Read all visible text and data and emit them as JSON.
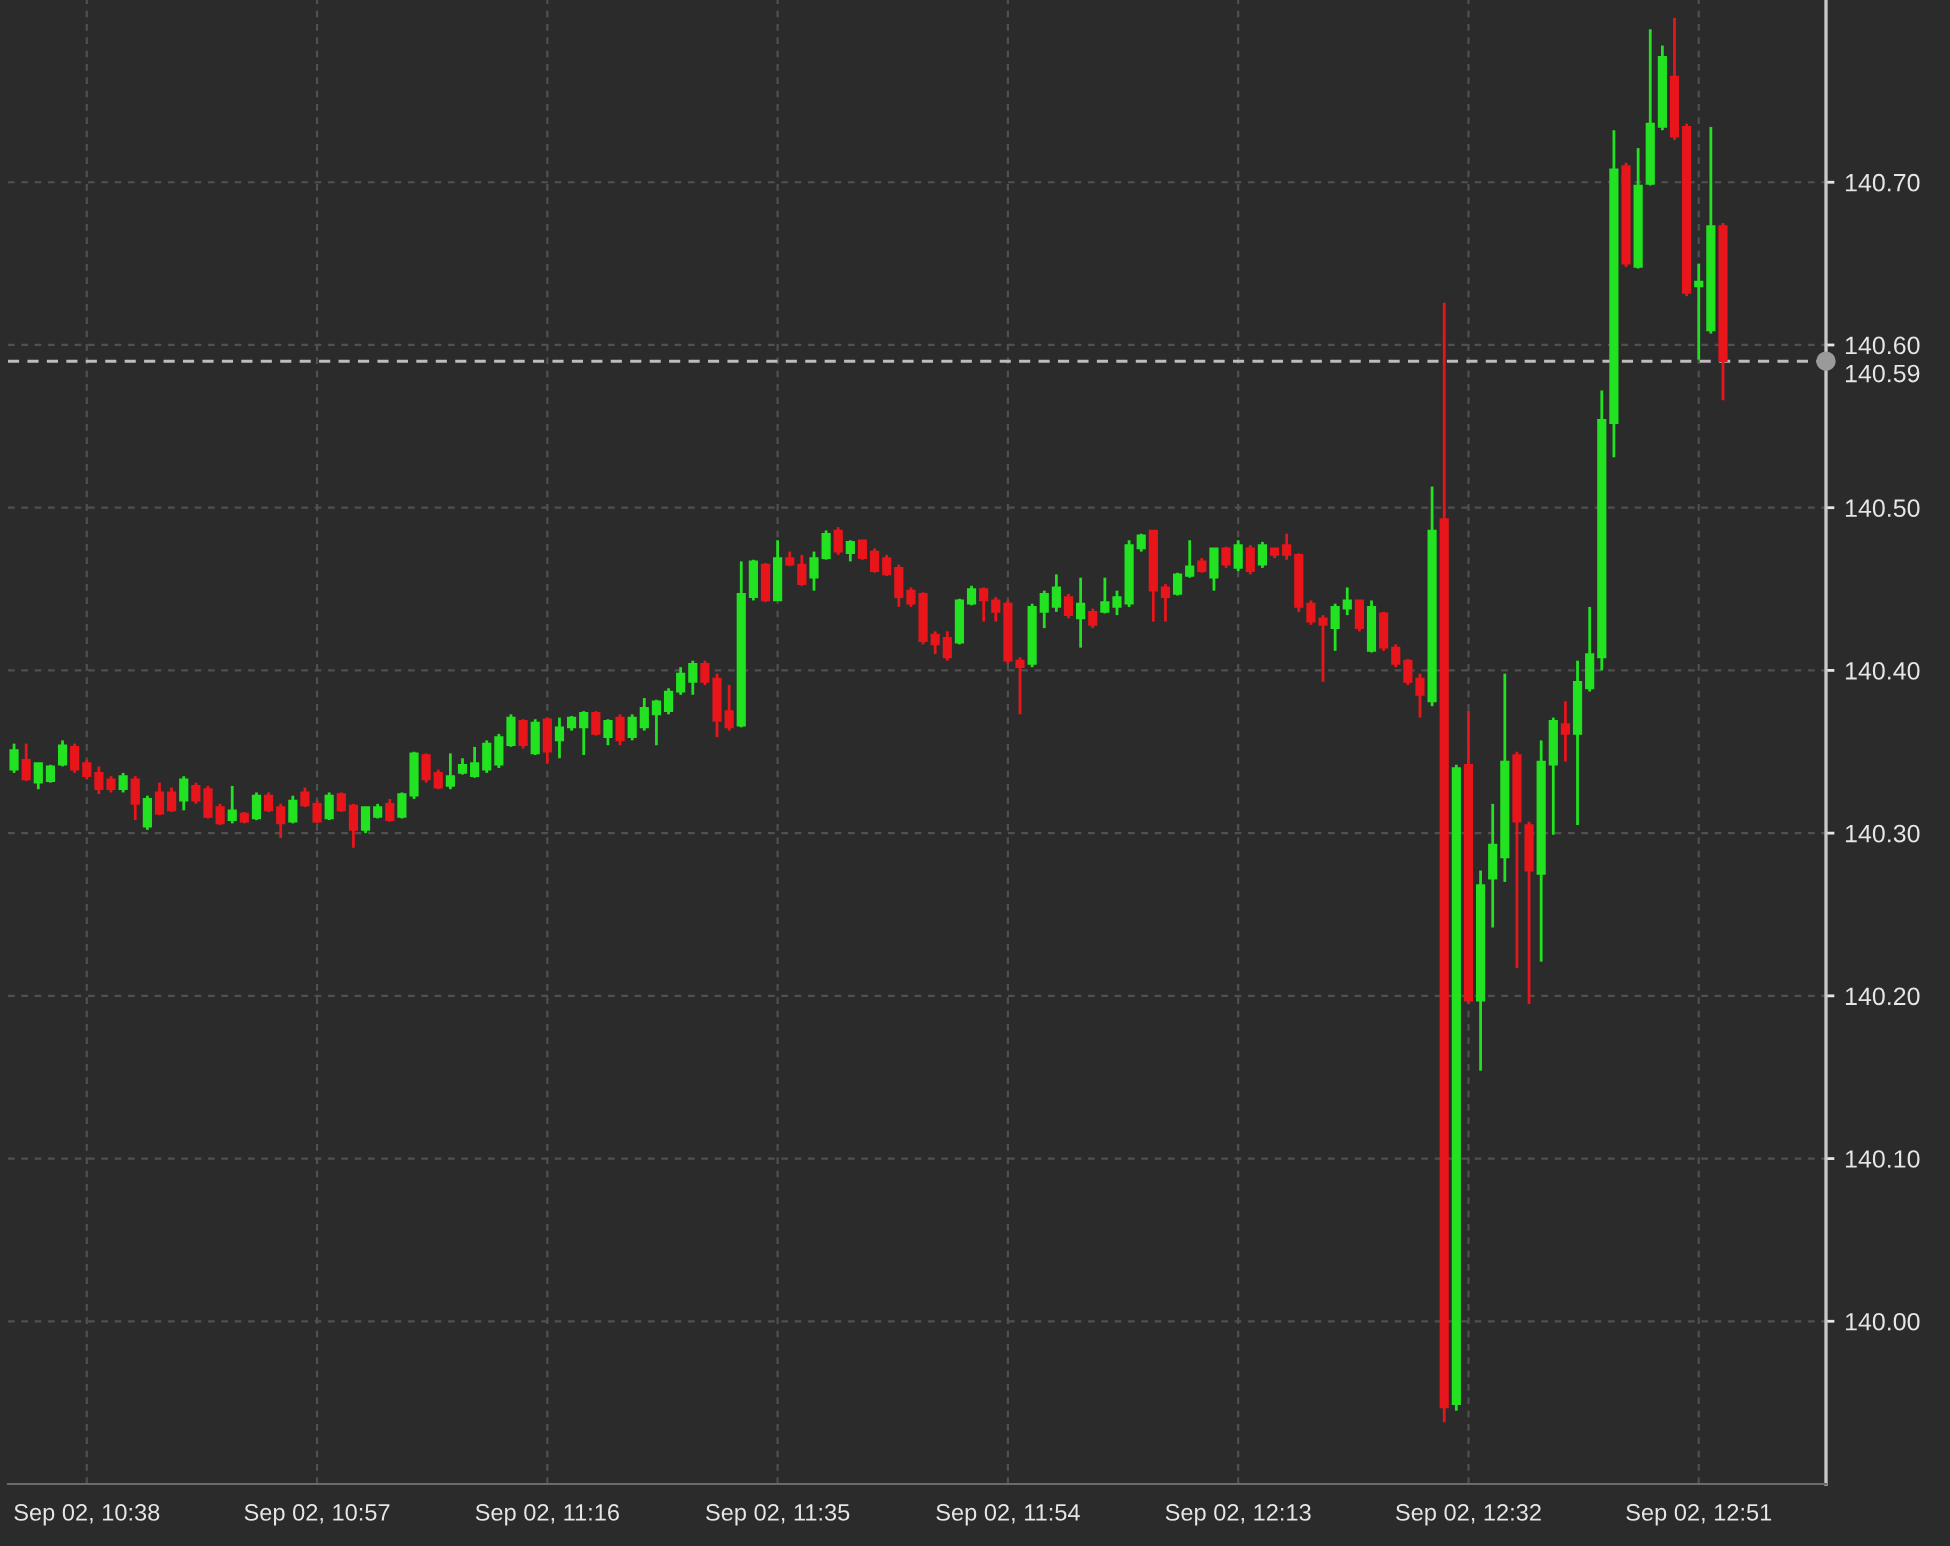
{
  "chart_data": {
    "type": "candlestick",
    "categories": [
      null,
      null,
      null,
      null,
      null,
      null,
      "Sep 02, 10:38",
      null,
      null,
      null,
      null,
      null,
      null,
      null,
      null,
      null,
      null,
      null,
      null,
      null,
      null,
      null,
      null,
      null,
      null,
      "Sep 02, 10:57",
      null,
      null,
      null,
      null,
      null,
      null,
      null,
      null,
      null,
      null,
      null,
      null,
      null,
      null,
      null,
      null,
      null,
      null,
      "Sep 02, 11:16",
      null,
      null,
      null,
      null,
      null,
      null,
      null,
      null,
      null,
      null,
      null,
      null,
      null,
      null,
      null,
      null,
      null,
      null,
      "Sep 02, 11:35",
      null,
      null,
      null,
      null,
      null,
      null,
      null,
      null,
      null,
      null,
      null,
      null,
      null,
      null,
      null,
      null,
      null,
      null,
      "Sep 02, 11:54",
      null,
      null,
      null,
      null,
      null,
      null,
      null,
      null,
      null,
      null,
      null,
      null,
      null,
      null,
      null,
      null,
      null,
      null,
      "Sep 02, 12:13",
      null,
      null,
      null,
      null,
      null,
      null,
      null,
      null,
      null,
      null,
      null,
      null,
      null,
      null,
      null,
      null,
      null,
      null,
      "Sep 02, 12:32",
      null,
      null,
      null,
      null,
      null,
      null,
      null,
      null,
      null,
      null,
      null,
      null,
      null,
      null,
      null,
      null,
      null,
      null,
      "Sep 02, 12:51",
      null,
      null,
      null,
      null,
      null,
      null,
      null,
      null,
      null,
      null
    ],
    "ohlc": [
      [
        140.339,
        140.355,
        140.337,
        140.351
      ],
      [
        140.345,
        140.355,
        140.332,
        140.333
      ],
      [
        140.331,
        140.343,
        140.327,
        140.343
      ],
      [
        140.332,
        140.342,
        140.331,
        140.341
      ],
      [
        140.342,
        140.357,
        140.341,
        140.354
      ],
      [
        140.353,
        140.355,
        140.337,
        140.339
      ],
      [
        140.343,
        140.345,
        140.333,
        140.335
      ],
      [
        140.337,
        140.341,
        140.324,
        140.327
      ],
      [
        140.333,
        140.335,
        140.325,
        140.327
      ],
      [
        140.327,
        140.337,
        140.325,
        140.335
      ],
      [
        140.333,
        140.335,
        140.308,
        140.318
      ],
      [
        140.304,
        140.323,
        140.302,
        140.321
      ],
      [
        140.325,
        140.331,
        140.311,
        140.312
      ],
      [
        140.325,
        140.328,
        140.313,
        140.314
      ],
      [
        140.32,
        140.335,
        140.314,
        140.333
      ],
      [
        140.329,
        140.331,
        140.318,
        140.32
      ],
      [
        140.327,
        140.329,
        140.309,
        140.31
      ],
      [
        140.316,
        140.318,
        140.305,
        140.306
      ],
      [
        140.308,
        140.329,
        140.306,
        140.314
      ],
      [
        140.312,
        140.313,
        140.306,
        140.307
      ],
      [
        140.309,
        140.325,
        140.308,
        140.323
      ],
      [
        140.323,
        140.325,
        140.313,
        140.314
      ],
      [
        140.316,
        140.318,
        140.297,
        140.306
      ],
      [
        140.307,
        140.323,
        140.306,
        140.32
      ],
      [
        140.325,
        140.328,
        140.316,
        140.317
      ],
      [
        140.318,
        140.32,
        140.306,
        140.307
      ],
      [
        140.309,
        140.325,
        140.308,
        140.323
      ],
      [
        140.324,
        140.325,
        140.313,
        140.314
      ],
      [
        140.317,
        140.318,
        140.291,
        140.302
      ],
      [
        140.302,
        140.316,
        140.3,
        140.316
      ],
      [
        140.31,
        140.318,
        140.309,
        140.316
      ],
      [
        140.318,
        140.321,
        140.307,
        140.308
      ],
      [
        140.31,
        140.325,
        140.309,
        140.324
      ],
      [
        140.323,
        140.35,
        140.321,
        140.349
      ],
      [
        140.348,
        140.349,
        140.331,
        140.333
      ],
      [
        140.337,
        140.339,
        140.327,
        140.328
      ],
      [
        140.329,
        140.349,
        140.327,
        140.335
      ],
      [
        140.337,
        140.346,
        140.336,
        140.342
      ],
      [
        140.335,
        140.353,
        140.334,
        140.343
      ],
      [
        140.339,
        140.357,
        140.337,
        140.355
      ],
      [
        140.342,
        140.361,
        140.34,
        140.359
      ],
      [
        140.354,
        140.373,
        140.353,
        140.371
      ],
      [
        140.369,
        140.37,
        140.352,
        140.354
      ],
      [
        140.349,
        140.37,
        140.348,
        140.368
      ],
      [
        140.37,
        140.371,
        140.343,
        140.35
      ],
      [
        140.357,
        140.371,
        140.346,
        140.365
      ],
      [
        140.365,
        140.372,
        140.363,
        140.371
      ],
      [
        140.365,
        140.375,
        140.348,
        140.374
      ],
      [
        140.374,
        140.375,
        140.36,
        140.361
      ],
      [
        140.359,
        140.37,
        140.354,
        140.369
      ],
      [
        140.371,
        140.373,
        140.354,
        140.357
      ],
      [
        140.359,
        140.373,
        140.357,
        140.371
      ],
      [
        140.365,
        140.383,
        140.363,
        140.377
      ],
      [
        140.373,
        140.382,
        140.354,
        140.381
      ],
      [
        140.375,
        140.389,
        140.373,
        140.387
      ],
      [
        140.387,
        140.402,
        140.385,
        140.398
      ],
      [
        140.393,
        140.406,
        140.385,
        140.404
      ],
      [
        140.404,
        140.406,
        140.391,
        140.393
      ],
      [
        140.395,
        140.398,
        140.359,
        140.369
      ],
      [
        140.375,
        140.391,
        140.363,
        140.365
      ],
      [
        140.366,
        140.467,
        140.365,
        140.447
      ],
      [
        140.445,
        140.468,
        140.443,
        140.467
      ],
      [
        140.465,
        140.466,
        140.442,
        140.443
      ],
      [
        140.443,
        140.48,
        140.443,
        140.469
      ],
      [
        140.469,
        140.473,
        140.464,
        140.465
      ],
      [
        140.465,
        140.471,
        140.452,
        140.453
      ],
      [
        140.457,
        140.473,
        140.449,
        140.469
      ],
      [
        140.469,
        140.486,
        140.468,
        140.484
      ],
      [
        140.486,
        140.488,
        140.471,
        140.473
      ],
      [
        140.472,
        140.48,
        140.467,
        140.479
      ],
      [
        140.48,
        140.48,
        140.468,
        140.469
      ],
      [
        140.473,
        140.475,
        140.46,
        140.461
      ],
      [
        140.469,
        140.471,
        140.458,
        140.459
      ],
      [
        140.463,
        140.465,
        140.439,
        140.445
      ],
      [
        140.449,
        140.451,
        140.439,
        140.441
      ],
      [
        140.447,
        140.448,
        140.416,
        140.418
      ],
      [
        140.422,
        140.424,
        140.41,
        140.416
      ],
      [
        140.42,
        140.424,
        140.406,
        140.408
      ],
      [
        140.417,
        140.444,
        140.416,
        140.443
      ],
      [
        140.441,
        140.452,
        140.44,
        140.45
      ],
      [
        140.45,
        140.451,
        140.43,
        140.443
      ],
      [
        140.443,
        140.445,
        140.43,
        140.436
      ],
      [
        140.441,
        140.443,
        140.404,
        140.406
      ],
      [
        140.406,
        140.408,
        140.373,
        140.402
      ],
      [
        140.404,
        140.441,
        140.402,
        140.439
      ],
      [
        140.436,
        140.449,
        140.426,
        140.447
      ],
      [
        140.439,
        140.459,
        140.436,
        140.451
      ],
      [
        140.445,
        140.447,
        140.432,
        140.434
      ],
      [
        140.432,
        140.457,
        140.414,
        140.441
      ],
      [
        140.436,
        140.438,
        140.426,
        140.428
      ],
      [
        140.436,
        140.457,
        140.435,
        140.442
      ],
      [
        140.439,
        140.449,
        140.434,
        140.445
      ],
      [
        140.441,
        140.48,
        140.439,
        140.477
      ],
      [
        140.475,
        140.484,
        140.473,
        140.483
      ],
      [
        140.486,
        140.486,
        140.43,
        140.449
      ],
      [
        140.451,
        140.453,
        140.43,
        140.445
      ],
      [
        140.447,
        140.46,
        140.446,
        140.459
      ],
      [
        140.458,
        140.48,
        140.457,
        140.464
      ],
      [
        140.467,
        140.469,
        140.46,
        140.461
      ],
      [
        140.457,
        140.475,
        140.449,
        140.475
      ],
      [
        140.475,
        140.476,
        140.463,
        140.465
      ],
      [
        140.463,
        140.48,
        140.461,
        140.477
      ],
      [
        140.475,
        140.477,
        140.459,
        140.461
      ],
      [
        140.465,
        140.479,
        140.463,
        140.477
      ],
      [
        140.475,
        140.475,
        140.469,
        140.471
      ],
      [
        140.477,
        140.484,
        140.468,
        140.471
      ],
      [
        140.471,
        140.472,
        140.436,
        140.439
      ],
      [
        140.441,
        140.443,
        140.428,
        140.43
      ],
      [
        140.432,
        140.434,
        140.393,
        140.428
      ],
      [
        140.426,
        140.441,
        140.412,
        140.439
      ],
      [
        140.438,
        140.451,
        140.434,
        140.443
      ],
      [
        140.443,
        140.443,
        140.424,
        140.426
      ],
      [
        140.412,
        140.443,
        140.411,
        140.439
      ],
      [
        140.435,
        140.436,
        140.412,
        140.414
      ],
      [
        140.414,
        140.416,
        140.402,
        140.404
      ],
      [
        140.406,
        140.407,
        140.391,
        140.393
      ],
      [
        140.395,
        140.398,
        140.371,
        140.385
      ],
      [
        140.381,
        140.513,
        140.378,
        140.486
      ],
      [
        140.493,
        140.626,
        139.938,
        139.947
      ],
      [
        139.949,
        140.342,
        139.945,
        140.34
      ],
      [
        140.342,
        140.375,
        140.195,
        140.197
      ],
      [
        140.197,
        140.277,
        140.154,
        140.268
      ],
      [
        140.272,
        140.318,
        140.242,
        140.293
      ],
      [
        140.285,
        140.398,
        140.27,
        140.344
      ],
      [
        140.348,
        140.35,
        140.217,
        140.307
      ],
      [
        140.305,
        140.307,
        140.195,
        140.277
      ],
      [
        140.275,
        140.357,
        140.221,
        140.344
      ],
      [
        140.342,
        140.371,
        140.299,
        140.369
      ],
      [
        140.367,
        140.381,
        140.344,
        140.361
      ],
      [
        140.361,
        140.406,
        140.305,
        140.393
      ],
      [
        140.389,
        140.439,
        140.387,
        140.41
      ],
      [
        140.408,
        140.572,
        140.4,
        140.554
      ],
      [
        140.552,
        140.732,
        140.531,
        140.708
      ],
      [
        140.71,
        140.712,
        140.648,
        140.65
      ],
      [
        140.648,
        140.721,
        140.647,
        140.698
      ],
      [
        140.699,
        140.794,
        140.698,
        140.736
      ],
      [
        140.734,
        140.784,
        140.732,
        140.777
      ],
      [
        140.765,
        140.801,
        140.726,
        140.728
      ],
      [
        140.734,
        140.736,
        140.63,
        140.632
      ],
      [
        140.636,
        140.65,
        140.591,
        140.639
      ],
      [
        140.609,
        140.734,
        140.607,
        140.673
      ],
      [
        140.673,
        140.675,
        140.566,
        140.59
      ],
      null,
      null,
      null,
      null,
      null,
      null,
      null,
      null
    ],
    "colors": [
      "#22e222",
      "#e8161b",
      "#22e222",
      "#22e222",
      "#22e222",
      "#e8161b",
      "#e8161b",
      "#e8161b",
      "#e8161b",
      "#22e222",
      "#e8161b",
      "#22e222",
      "#e8161b",
      "#e8161b",
      "#22e222",
      "#e8161b",
      "#e8161b",
      "#e8161b",
      "#22e222",
      "#e8161b",
      "#22e222",
      "#e8161b",
      "#e8161b",
      "#22e222",
      "#e8161b",
      "#e8161b",
      "#22e222",
      "#e8161b",
      "#e8161b",
      "#22e222",
      "#22e222",
      "#e8161b",
      "#22e222",
      "#22e222",
      "#e8161b",
      "#e8161b",
      "#22e222",
      "#22e222",
      "#22e222",
      "#22e222",
      "#22e222",
      "#22e222",
      "#e8161b",
      "#22e222",
      "#e8161b",
      "#22e222",
      "#22e222",
      "#22e222",
      "#e8161b",
      "#22e222",
      "#e8161b",
      "#22e222",
      "#22e222",
      "#22e222",
      "#22e222",
      "#22e222",
      "#22e222",
      "#e8161b",
      "#e8161b",
      "#e8161b",
      "#22e222",
      "#22e222",
      "#e8161b",
      "#22e222",
      "#e8161b",
      "#e8161b",
      "#22e222",
      "#22e222",
      "#e8161b",
      "#22e222",
      "#e8161b",
      "#e8161b",
      "#e8161b",
      "#e8161b",
      "#e8161b",
      "#e8161b",
      "#e8161b",
      "#e8161b",
      "#22e222",
      "#22e222",
      "#e8161b",
      "#e8161b",
      "#e8161b",
      "#e8161b",
      "#22e222",
      "#22e222",
      "#22e222",
      "#e8161b",
      "#22e222",
      "#e8161b",
      "#22e222",
      "#22e222",
      "#22e222",
      "#22e222",
      "#e8161b",
      "#e8161b",
      "#22e222",
      "#22e222",
      "#e8161b",
      "#22e222",
      "#e8161b",
      "#22e222",
      "#e8161b",
      "#22e222",
      "#e8161b",
      "#e8161b",
      "#e8161b",
      "#e8161b",
      "#e8161b",
      "#22e222",
      "#22e222",
      "#e8161b",
      "#22e222",
      "#e8161b",
      "#e8161b",
      "#e8161b",
      "#e8161b",
      "#22e222",
      "#e8161b",
      "#22e222",
      "#e8161b",
      "#22e222",
      "#22e222",
      "#22e222",
      "#e8161b",
      "#e8161b",
      "#22e222",
      "#22e222",
      "#e8161b",
      "#22e222",
      "#22e222",
      "#22e222",
      "#22e222",
      "#e8161b",
      "#22e222",
      "#22e222",
      "#22e222",
      "#e8161b",
      "#e8161b",
      "#22e222",
      "#22e222",
      "#e8161b",
      null,
      null,
      null,
      null,
      null,
      null,
      null,
      null
    ],
    "ylim": [
      139.9,
      140.812
    ],
    "yticks": [
      {
        "value": 140.0,
        "label": "140.00"
      },
      {
        "value": 140.1,
        "label": "140.10"
      },
      {
        "value": 140.2,
        "label": "140.20"
      },
      {
        "value": 140.3,
        "label": "140.30"
      },
      {
        "value": 140.4,
        "label": "140.40"
      },
      {
        "value": 140.5,
        "label": "140.50"
      },
      {
        "value": 140.6,
        "label": "140.60"
      },
      {
        "value": 140.7,
        "label": "140.70"
      }
    ],
    "grid": true,
    "ref_lines": [
      {
        "axis": "y",
        "value": 140.59,
        "label": "140.59",
        "color": "#bdbdbd",
        "line_style": "dashed"
      }
    ]
  }
}
